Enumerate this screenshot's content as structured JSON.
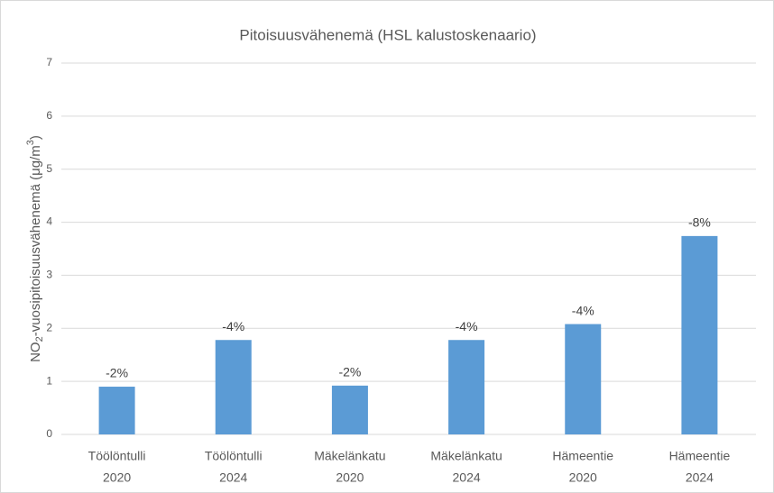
{
  "chart_data": {
    "type": "bar",
    "title": "Pitoisuusvähenemä (HSL kalustoskenaario)",
    "y_label": [
      "NO",
      "2",
      "-vuosipitoisuusvähenemä (μg/m",
      "3",
      ")"
    ],
    "categories": [
      [
        "Töölöntulli",
        "2020"
      ],
      [
        "Töölöntulli",
        "2024"
      ],
      [
        "Mäkelänkatu",
        "2020"
      ],
      [
        "Mäkelänkatu",
        "2024"
      ],
      [
        "Hämeentie",
        "2020"
      ],
      [
        "Hämeentie",
        "2024"
      ]
    ],
    "values": [
      0.9,
      1.78,
      0.92,
      1.78,
      2.08,
      3.74
    ],
    "bar_annotations": [
      "-2%",
      "-4%",
      "-2%",
      "-4%",
      "-4%",
      "-8%"
    ],
    "color": "#5b9bd5",
    "ylim": [
      0,
      7
    ],
    "yticks": [
      0,
      1,
      2,
      3,
      4,
      5,
      6,
      7
    ],
    "grid": true
  }
}
